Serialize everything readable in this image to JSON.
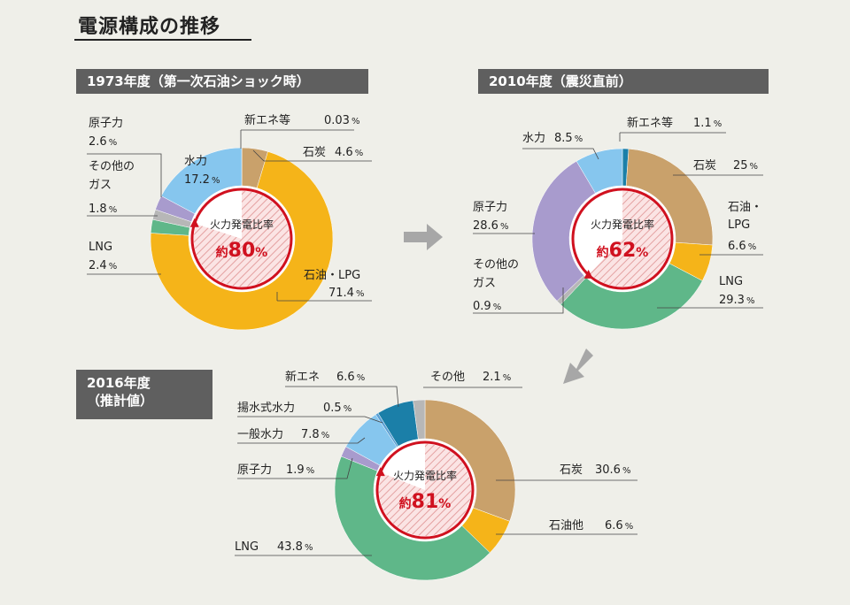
{
  "heading": "電源構成の推移",
  "center_label": "火力発電比率",
  "approx": "約",
  "colors": {
    "coal": "#c9a16b",
    "oil": "#f5b419",
    "lng": "#5fb789",
    "other_gas": "#b7b7b7",
    "nuclear": "#a89bcd",
    "hydro": "#86c6ee",
    "new_energy": "#1b7fa8",
    "accent": "#d0111f",
    "section_bg": "#5f5f5f"
  },
  "chart_data": [
    {
      "type": "pie",
      "section_label": "1973年度（第一次石油ショック時）",
      "center_value": "80",
      "slices": [
        {
          "name": "新エネ等",
          "value": 0.03,
          "display": "0.03",
          "color": "#1b7fa8"
        },
        {
          "name": "石炭",
          "value": 4.6,
          "display": "4.6",
          "color": "#c9a16b"
        },
        {
          "name": "石油・LPG",
          "value": 71.4,
          "display": "71.4",
          "color": "#f5b419"
        },
        {
          "name": "LNG",
          "value": 2.4,
          "display": "2.4",
          "color": "#5fb789"
        },
        {
          "name": "その他の\nガス",
          "value": 1.8,
          "display": "1.8",
          "color": "#b7b7b7"
        },
        {
          "name": "原子力",
          "value": 2.6,
          "display": "2.6",
          "color": "#a89bcd"
        },
        {
          "name": "水力",
          "value": 17.2,
          "display": "17.2",
          "color": "#86c6ee"
        }
      ]
    },
    {
      "type": "pie",
      "section_label": "2010年度（震災直前）",
      "center_value": "62",
      "slices": [
        {
          "name": "新エネ等",
          "value": 1.1,
          "display": "1.1",
          "color": "#1b7fa8"
        },
        {
          "name": "石炭",
          "value": 25,
          "display": "25",
          "color": "#c9a16b"
        },
        {
          "name": "石油・\nLPG",
          "value": 6.6,
          "display": "6.6",
          "color": "#f5b419"
        },
        {
          "name": "LNG",
          "value": 29.3,
          "display": "29.3",
          "color": "#5fb789"
        },
        {
          "name": "その他の\nガス",
          "value": 0.9,
          "display": "0.9",
          "color": "#b7b7b7"
        },
        {
          "name": "原子力",
          "value": 28.6,
          "display": "28.6",
          "color": "#a89bcd"
        },
        {
          "name": "水力",
          "value": 8.5,
          "display": "8.5",
          "color": "#86c6ee"
        }
      ]
    },
    {
      "type": "pie",
      "section_label": "2016年度\n（推計値）",
      "center_value": "81",
      "slices": [
        {
          "name": "石炭",
          "value": 30.6,
          "display": "30.6",
          "color": "#c9a16b"
        },
        {
          "name": "石油他",
          "value": 6.6,
          "display": "6.6",
          "color": "#f5b419"
        },
        {
          "name": "LNG",
          "value": 43.8,
          "display": "43.8",
          "color": "#5fb789"
        },
        {
          "name": "原子力",
          "value": 1.9,
          "display": "1.9",
          "color": "#a89bcd"
        },
        {
          "name": "一般水力",
          "value": 7.8,
          "display": "7.8",
          "color": "#86c6ee"
        },
        {
          "name": "揚水式水力",
          "value": 0.5,
          "display": "0.5",
          "color": "#5a9fd4"
        },
        {
          "name": "新エネ",
          "value": 6.6,
          "display": "6.6",
          "color": "#1b7fa8"
        },
        {
          "name": "その他",
          "value": 2.1,
          "display": "2.1",
          "color": "#b7b7b7"
        }
      ]
    }
  ]
}
